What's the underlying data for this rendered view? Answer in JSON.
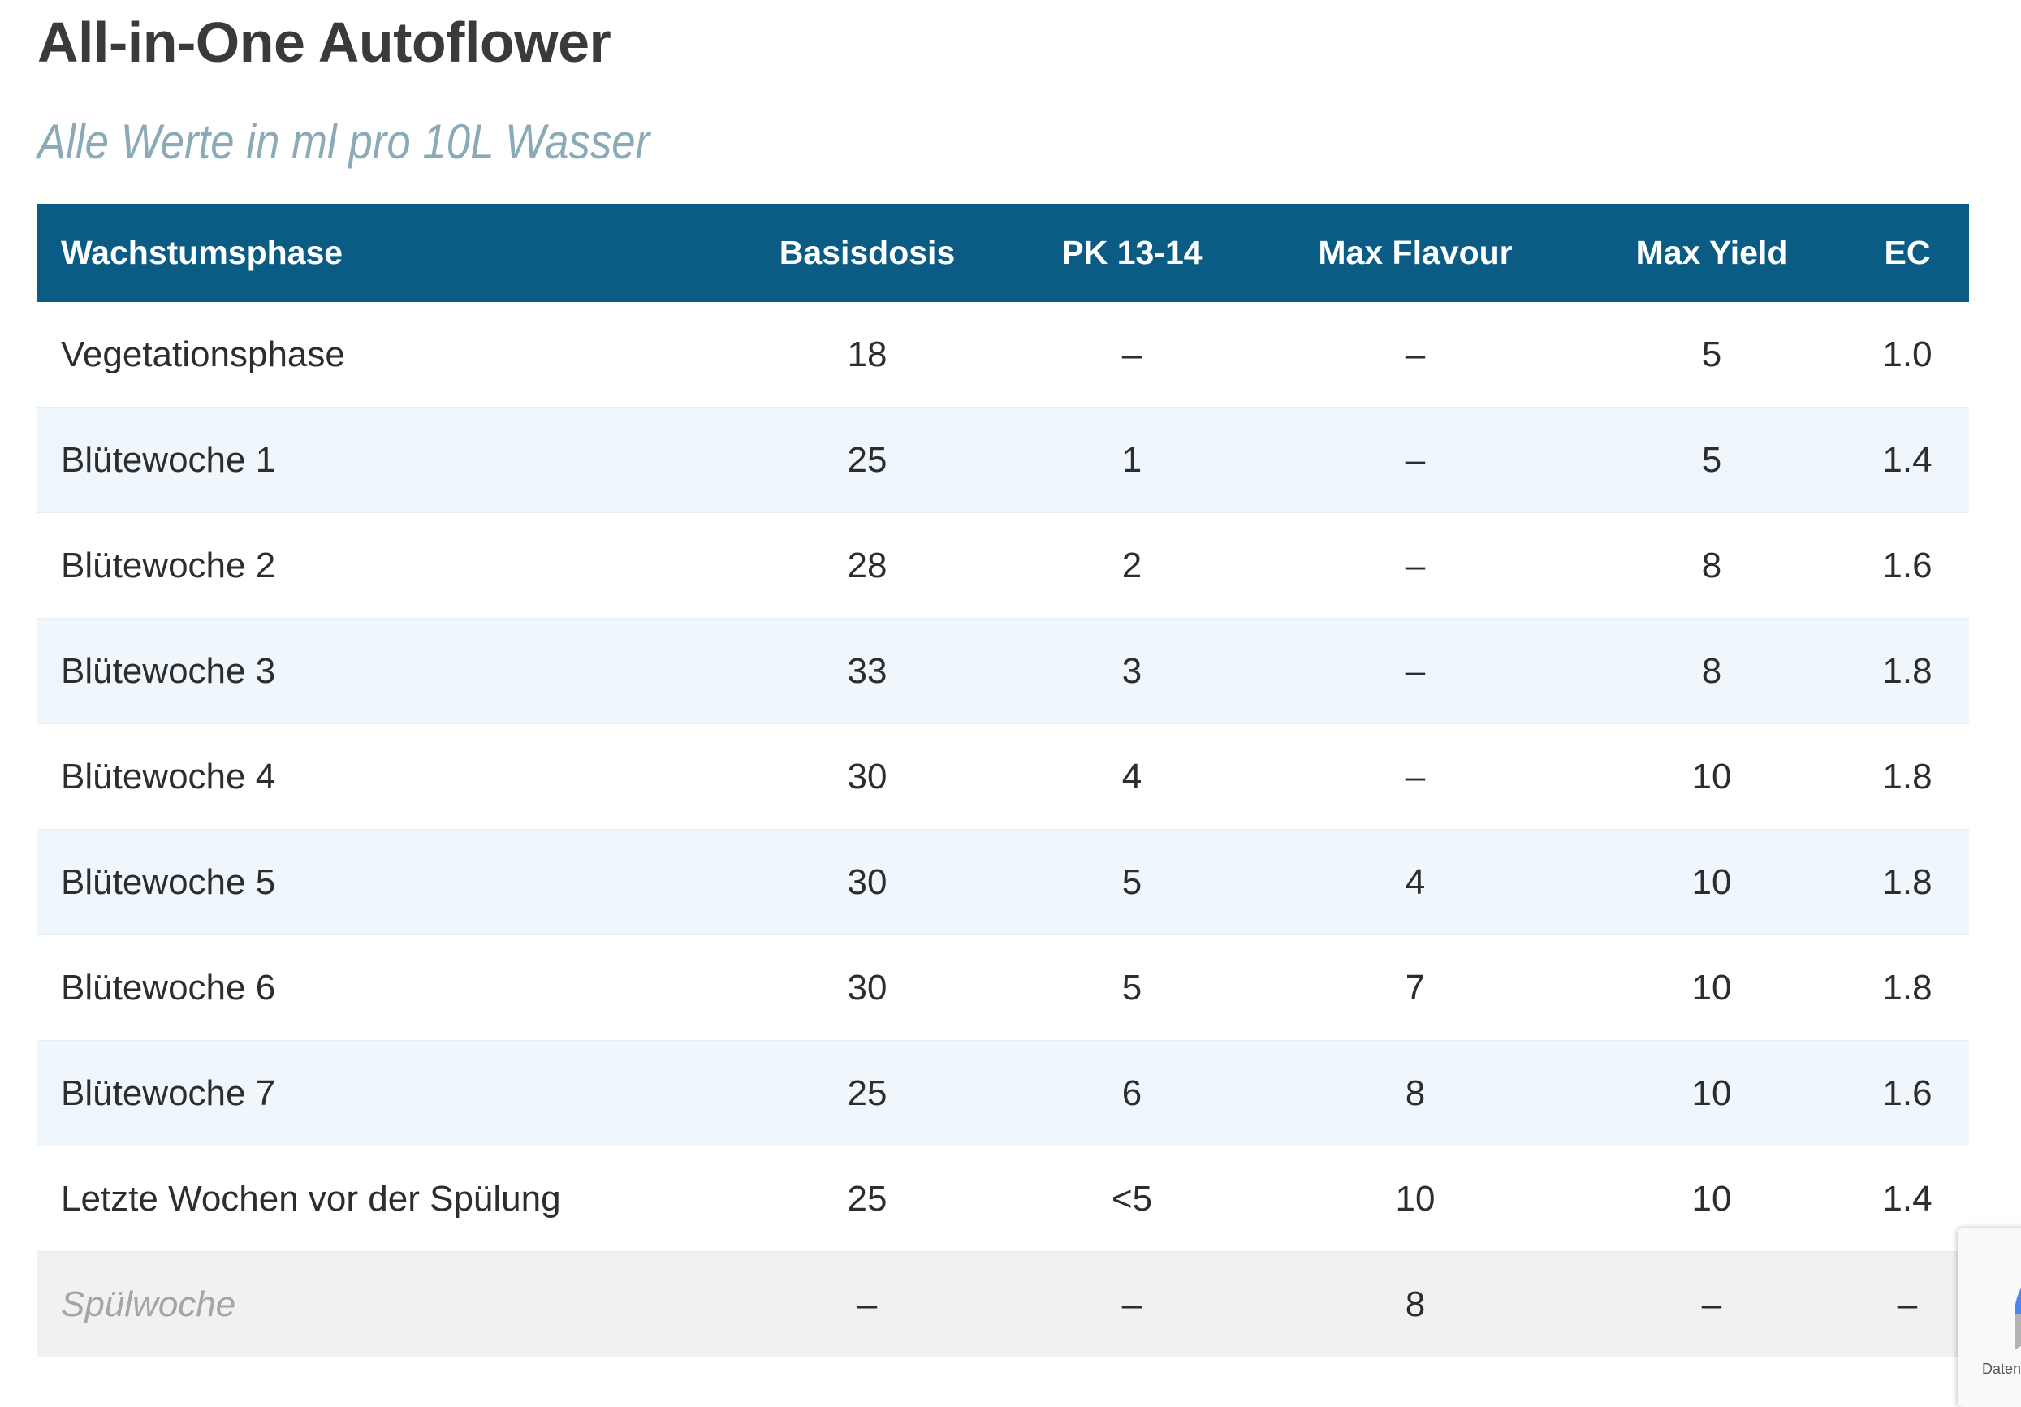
{
  "title": "All-in-One Autoflower",
  "subtitle": "Alle Werte in ml pro 10L Wasser",
  "table": {
    "headers": [
      "Wachstumsphase",
      "Basisdosis",
      "PK 13-14",
      "Max Flavour",
      "Max Yield",
      "EC"
    ],
    "rows": [
      [
        "Vegetationsphase",
        "18",
        "–",
        "–",
        "5",
        "1.0"
      ],
      [
        "Blütewoche 1",
        "25",
        "1",
        "–",
        "5",
        "1.4"
      ],
      [
        "Blütewoche 2",
        "28",
        "2",
        "–",
        "8",
        "1.6"
      ],
      [
        "Blütewoche 3",
        "33",
        "3",
        "–",
        "8",
        "1.8"
      ],
      [
        "Blütewoche 4",
        "30",
        "4",
        "–",
        "10",
        "1.8"
      ],
      [
        "Blütewoche 5",
        "30",
        "5",
        "4",
        "10",
        "1.8"
      ],
      [
        "Blütewoche 6",
        "30",
        "5",
        "7",
        "10",
        "1.8"
      ],
      [
        "Blütewoche 7",
        "25",
        "6",
        "8",
        "10",
        "1.6"
      ],
      [
        "Letzte Wochen vor der Spülung",
        "25",
        "<5",
        "10",
        "10",
        "1.4"
      ],
      [
        "Spülwoche",
        "–",
        "–",
        "8",
        "–",
        "–"
      ]
    ]
  },
  "recaptcha_badge": {
    "text": "Daten",
    "icon": "recaptcha-icon"
  },
  "colors": {
    "header_bg": "#0b5c84",
    "alt_row": "#eff7fd",
    "flush_row": "#f1f1f1",
    "subtitle": "#8aaab8"
  }
}
